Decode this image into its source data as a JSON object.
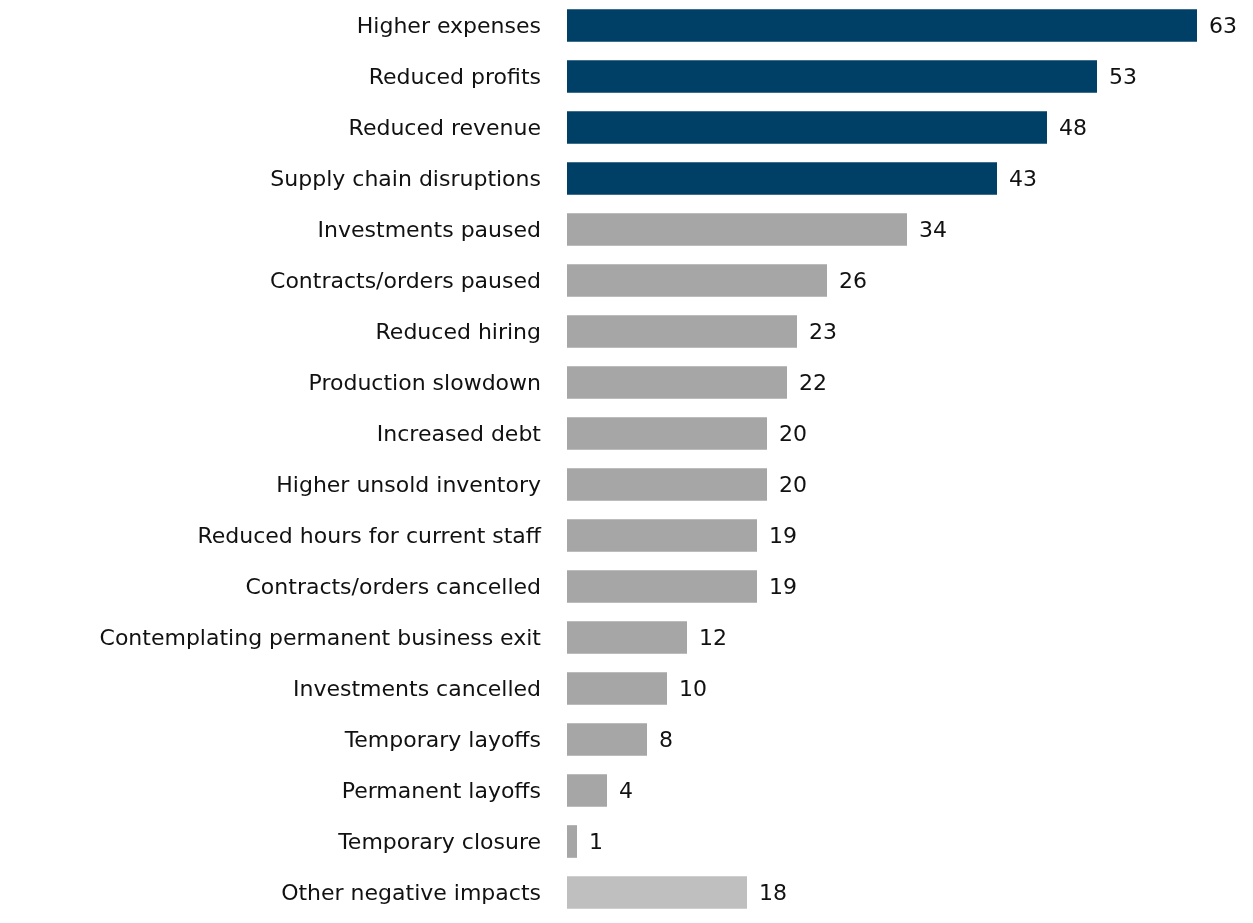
{
  "chart_data": {
    "type": "bar",
    "orientation": "horizontal",
    "categories": [
      "Higher expenses",
      "Reduced profits",
      "Reduced revenue",
      "Supply chain disruptions",
      "Investments paused",
      "Contracts/orders paused",
      "Reduced hiring",
      "Production slowdown",
      "Increased debt",
      "Higher unsold inventory",
      "Reduced hours for current staff",
      "Contracts/orders cancelled",
      "Contemplating permanent business exit",
      "Investments cancelled",
      "Temporary layoffs",
      "Permanent layoffs",
      "Temporary closure",
      "Other negative impacts"
    ],
    "values": [
      63,
      53,
      48,
      43,
      34,
      26,
      23,
      22,
      20,
      20,
      19,
      19,
      12,
      10,
      8,
      4,
      1,
      18
    ],
    "colors": [
      "#003f66",
      "#003f66",
      "#003f66",
      "#003f66",
      "#a6a6a6",
      "#a6a6a6",
      "#a6a6a6",
      "#a6a6a6",
      "#a6a6a6",
      "#a6a6a6",
      "#a6a6a6",
      "#a6a6a6",
      "#a6a6a6",
      "#a6a6a6",
      "#a6a6a6",
      "#a6a6a6",
      "#a6a6a6",
      "#bfbfbf"
    ],
    "data_labels": true
  }
}
